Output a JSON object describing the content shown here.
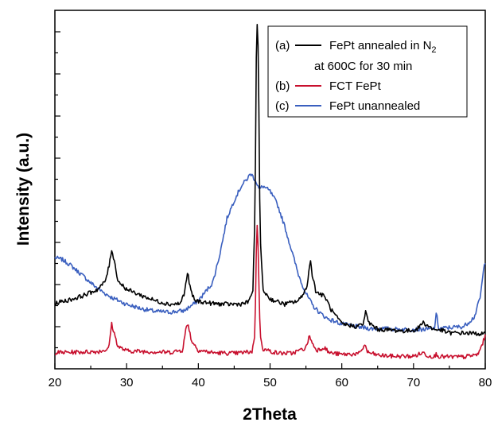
{
  "chart_data": {
    "type": "line",
    "title": "",
    "xlabel": "2Theta",
    "ylabel": "Intensity (a.u.)",
    "xlim": [
      20,
      80
    ],
    "xticks": [
      "20",
      "30",
      "40",
      "50",
      "60",
      "70",
      "80"
    ],
    "y_tick_labels": false,
    "grid": false,
    "legend_position": "top-right",
    "legend_extra_line": "at 600C for 30 min",
    "series": [
      {
        "name": "FePt annealed in N2",
        "legend_tag": "(a)",
        "legend_text": "FePt annealed in N",
        "legend_subscript": "2",
        "color": "#000000",
        "points": [
          [
            20,
            0.182
          ],
          [
            21,
            0.188
          ],
          [
            22,
            0.192
          ],
          [
            23,
            0.198
          ],
          [
            24,
            0.205
          ],
          [
            25,
            0.213
          ],
          [
            26,
            0.222
          ],
          [
            27,
            0.243
          ],
          [
            27.6,
            0.29
          ],
          [
            27.9,
            0.334
          ],
          [
            28.3,
            0.3
          ],
          [
            28.8,
            0.245
          ],
          [
            30,
            0.222
          ],
          [
            32,
            0.205
          ],
          [
            34,
            0.19
          ],
          [
            36,
            0.18
          ],
          [
            37.5,
            0.182
          ],
          [
            38.1,
            0.215
          ],
          [
            38.5,
            0.27
          ],
          [
            38.9,
            0.22
          ],
          [
            39.5,
            0.19
          ],
          [
            42,
            0.182
          ],
          [
            44,
            0.18
          ],
          [
            46,
            0.181
          ],
          [
            47,
            0.186
          ],
          [
            47.6,
            0.22
          ],
          [
            47.9,
            0.42
          ],
          [
            48.1,
            0.92
          ],
          [
            48.25,
            0.985
          ],
          [
            48.4,
            0.82
          ],
          [
            48.6,
            0.38
          ],
          [
            49,
            0.22
          ],
          [
            50,
            0.195
          ],
          [
            52,
            0.18
          ],
          [
            54,
            0.19
          ],
          [
            55.2,
            0.23
          ],
          [
            55.6,
            0.31
          ],
          [
            55.9,
            0.26
          ],
          [
            56.4,
            0.215
          ],
          [
            57.3,
            0.205
          ],
          [
            57.7,
            0.2
          ],
          [
            58.5,
            0.165
          ],
          [
            60,
            0.125
          ],
          [
            62,
            0.118
          ],
          [
            63,
            0.125
          ],
          [
            63.3,
            0.16
          ],
          [
            63.7,
            0.13
          ],
          [
            65,
            0.11
          ],
          [
            67,
            0.108
          ],
          [
            69,
            0.105
          ],
          [
            70.5,
            0.11
          ],
          [
            71.3,
            0.13
          ],
          [
            72,
            0.12
          ],
          [
            73,
            0.108
          ],
          [
            73.5,
            0.11
          ],
          [
            75,
            0.1
          ],
          [
            77,
            0.1
          ],
          [
            80,
            0.097
          ]
        ]
      },
      {
        "name": "FCT FePt",
        "legend_tag": "(b)",
        "legend_text": "FCT FePt",
        "legend_subscript": "",
        "color": "#c8102e",
        "points": [
          [
            20,
            0.045
          ],
          [
            22,
            0.046
          ],
          [
            24,
            0.047
          ],
          [
            26,
            0.048
          ],
          [
            27.5,
            0.055
          ],
          [
            27.9,
            0.126
          ],
          [
            28.2,
            0.104
          ],
          [
            28.8,
            0.062
          ],
          [
            30,
            0.05
          ],
          [
            33,
            0.048
          ],
          [
            36,
            0.046
          ],
          [
            37.8,
            0.052
          ],
          [
            38.3,
            0.115
          ],
          [
            38.6,
            0.125
          ],
          [
            39,
            0.08
          ],
          [
            40,
            0.052
          ],
          [
            42,
            0.045
          ],
          [
            45,
            0.043
          ],
          [
            47.5,
            0.048
          ],
          [
            47.9,
            0.1
          ],
          [
            48.1,
            0.35
          ],
          [
            48.2,
            0.405
          ],
          [
            48.35,
            0.33
          ],
          [
            48.6,
            0.1
          ],
          [
            49,
            0.055
          ],
          [
            51,
            0.044
          ],
          [
            53,
            0.043
          ],
          [
            55,
            0.058
          ],
          [
            55.5,
            0.093
          ],
          [
            55.9,
            0.07
          ],
          [
            56.5,
            0.052
          ],
          [
            57.6,
            0.06
          ],
          [
            58.2,
            0.045
          ],
          [
            60,
            0.04
          ],
          [
            62.5,
            0.042
          ],
          [
            63.2,
            0.068
          ],
          [
            63.6,
            0.046
          ],
          [
            65,
            0.038
          ],
          [
            67,
            0.035
          ],
          [
            70,
            0.035
          ],
          [
            71.4,
            0.045
          ],
          [
            72,
            0.036
          ],
          [
            73,
            0.035
          ],
          [
            73.2,
            0.042
          ],
          [
            73.6,
            0.034
          ],
          [
            75,
            0.033
          ],
          [
            77,
            0.033
          ],
          [
            79,
            0.04
          ],
          [
            80,
            0.09
          ]
        ]
      },
      {
        "name": "FePt unannealed",
        "legend_tag": "(c)",
        "legend_text": "FePt unannealed",
        "legend_subscript": "",
        "color": "#3a5fbf",
        "points": [
          [
            20,
            0.31
          ],
          [
            21,
            0.305
          ],
          [
            22,
            0.292
          ],
          [
            23,
            0.275
          ],
          [
            24,
            0.258
          ],
          [
            25,
            0.24
          ],
          [
            26,
            0.224
          ],
          [
            27,
            0.21
          ],
          [
            28,
            0.198
          ],
          [
            30,
            0.18
          ],
          [
            32,
            0.168
          ],
          [
            34,
            0.16
          ],
          [
            36,
            0.158
          ],
          [
            38,
            0.162
          ],
          [
            40,
            0.19
          ],
          [
            42,
            0.24
          ],
          [
            43,
            0.32
          ],
          [
            44,
            0.42
          ],
          [
            45,
            0.47
          ],
          [
            46,
            0.51
          ],
          [
            47,
            0.535
          ],
          [
            47.3,
            0.545
          ],
          [
            48,
            0.525
          ],
          [
            48.5,
            0.5
          ],
          [
            49,
            0.51
          ],
          [
            50,
            0.495
          ],
          [
            51,
            0.46
          ],
          [
            52,
            0.4
          ],
          [
            53,
            0.33
          ],
          [
            54,
            0.26
          ],
          [
            55,
            0.21
          ],
          [
            56,
            0.175
          ],
          [
            57,
            0.155
          ],
          [
            58,
            0.14
          ],
          [
            60,
            0.125
          ],
          [
            62,
            0.118
          ],
          [
            64,
            0.112
          ],
          [
            66,
            0.112
          ],
          [
            68,
            0.11
          ],
          [
            70,
            0.11
          ],
          [
            72,
            0.11
          ],
          [
            72.9,
            0.112
          ],
          [
            73.2,
            0.155
          ],
          [
            73.5,
            0.112
          ],
          [
            75,
            0.115
          ],
          [
            77,
            0.118
          ],
          [
            78.5,
            0.145
          ],
          [
            79.3,
            0.2
          ],
          [
            79.8,
            0.28
          ],
          [
            80,
            0.3
          ]
        ]
      }
    ]
  }
}
